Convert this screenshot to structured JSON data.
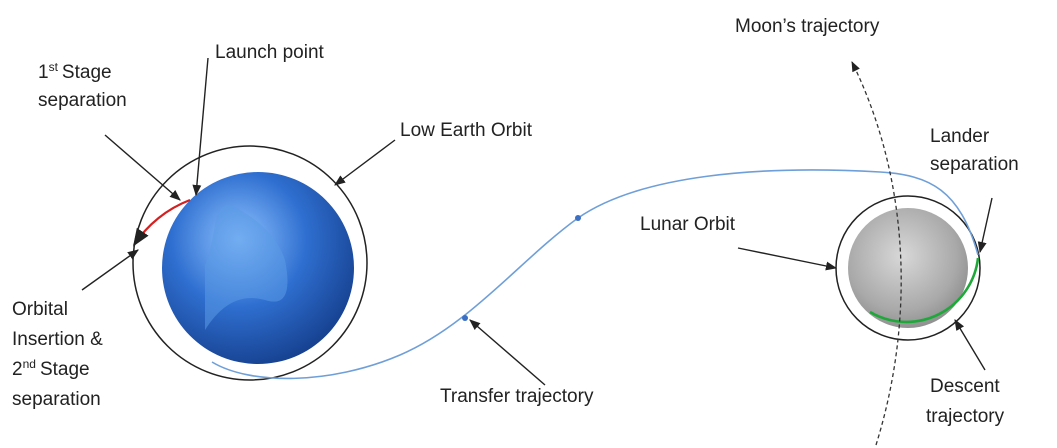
{
  "labels": {
    "first_stage": {
      "ordinal": "1",
      "suffix": "st",
      "line1": "Stage",
      "line2": "separation"
    },
    "launch_point": "Launch point",
    "low_earth_orbit": "Low Earth Orbit",
    "moons_trajectory": "Moon’s trajectory",
    "lander_separation": [
      "Lander",
      "separation"
    ],
    "lunar_orbit": "Lunar Orbit",
    "orbital_insertion": {
      "line1": "Orbital",
      "line2": "Insertion &",
      "ordinal": "2",
      "suffix": "nd",
      "line3": "Stage",
      "line4": "separation"
    },
    "transfer_trajectory": "Transfer trajectory",
    "descent_trajectory": [
      "Descent",
      "trajectory"
    ]
  }
}
